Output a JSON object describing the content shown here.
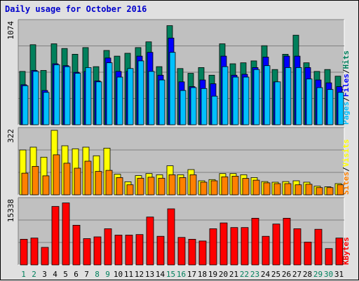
{
  "title": "Daily usage for October 2016",
  "colors": {
    "background": "#e0e0e0",
    "plot_bg": "#c0c0c0",
    "grid": "#808080",
    "hits": "#00805c",
    "files": "#0000ff",
    "pages": "#00c0ff",
    "visits": "#ffff00",
    "sites": "#ff8000",
    "kbytes": "#ff0000",
    "weekday_tick": "#000000",
    "weekend_tick": "#00805c"
  },
  "chart_data": [
    {
      "type": "bar",
      "name": "hits-files-pages",
      "ymax_label": "1074",
      "ylim": [
        0,
        1074
      ],
      "side_labels": [
        "Pages",
        "/",
        "Files",
        "/",
        "Hits"
      ],
      "categories": [
        "1",
        "2",
        "3",
        "4",
        "5",
        "6",
        "7",
        "8",
        "9",
        "10",
        "11",
        "12",
        "13",
        "14",
        "15",
        "16",
        "17",
        "18",
        "19",
        "20",
        "21",
        "22",
        "23",
        "24",
        "25",
        "26",
        "27",
        "28",
        "29",
        "30",
        "31"
      ],
      "series": [
        {
          "name": "Hits",
          "values": [
            560,
            840,
            570,
            850,
            800,
            740,
            810,
            610,
            780,
            720,
            750,
            810,
            870,
            610,
            1040,
            590,
            540,
            600,
            520,
            850,
            640,
            650,
            670,
            830,
            580,
            740,
            940,
            650,
            560,
            580,
            510
          ]
        },
        {
          "name": "Files",
          "values": [
            420,
            570,
            360,
            640,
            620,
            550,
            560,
            460,
            700,
            560,
            560,
            720,
            760,
            520,
            910,
            450,
            400,
            470,
            430,
            720,
            520,
            530,
            600,
            710,
            450,
            720,
            720,
            600,
            470,
            440,
            400
          ]
        },
        {
          "name": "Pages",
          "values": [
            410,
            560,
            340,
            630,
            610,
            540,
            600,
            450,
            650,
            500,
            590,
            670,
            560,
            470,
            760,
            360,
            390,
            380,
            300,
            610,
            500,
            500,
            580,
            620,
            450,
            600,
            600,
            480,
            390,
            370,
            340
          ]
        }
      ]
    },
    {
      "type": "bar",
      "name": "sites-visits",
      "ymax_label": "322",
      "ylim": [
        0,
        322
      ],
      "side_labels": [
        "Sites",
        "/",
        "Visits"
      ],
      "categories": [
        "1",
        "2",
        "3",
        "4",
        "5",
        "6",
        "7",
        "8",
        "9",
        "10",
        "11",
        "12",
        "13",
        "14",
        "15",
        "16",
        "17",
        "18",
        "19",
        "20",
        "21",
        "22",
        "23",
        "24",
        "25",
        "26",
        "27",
        "28",
        "29",
        "30",
        "31"
      ],
      "series": [
        {
          "name": "Visits",
          "values": [
            224,
            238,
            188,
            322,
            245,
            230,
            238,
            195,
            233,
            103,
            65,
            96,
            106,
            100,
            145,
            100,
            126,
            70,
            76,
            106,
            106,
            100,
            86,
            66,
            63,
            66,
            70,
            63,
            43,
            40,
            56
          ]
        },
        {
          "name": "Sites",
          "values": [
            108,
            142,
            95,
            200,
            158,
            133,
            168,
            117,
            122,
            86,
            50,
            83,
            88,
            83,
            100,
            86,
            100,
            63,
            70,
            90,
            93,
            82,
            73,
            60,
            56,
            56,
            50,
            53,
            36,
            36,
            50
          ]
        }
      ]
    },
    {
      "type": "bar",
      "name": "kbytes",
      "ymax_label": "15338",
      "ylim": [
        0,
        15338
      ],
      "side_labels": [
        "KBytes"
      ],
      "categories": [
        "1",
        "2",
        "3",
        "4",
        "5",
        "6",
        "7",
        "8",
        "9",
        "10",
        "11",
        "12",
        "13",
        "14",
        "15",
        "16",
        "17",
        "18",
        "19",
        "20",
        "21",
        "22",
        "23",
        "24",
        "25",
        "26",
        "27",
        "28",
        "29",
        "30",
        "31"
      ],
      "series": [
        {
          "name": "KBytes",
          "values": [
            6110,
            6390,
            4170,
            13900,
            14740,
            9430,
            6250,
            6670,
            8610,
            7080,
            7080,
            7220,
            11390,
            6810,
            13340,
            6530,
            6110,
            5690,
            8610,
            9990,
            8890,
            8890,
            11100,
            6810,
            9720,
            11100,
            8610,
            5410,
            8470,
            3890,
            6390
          ]
        }
      ]
    }
  ]
}
